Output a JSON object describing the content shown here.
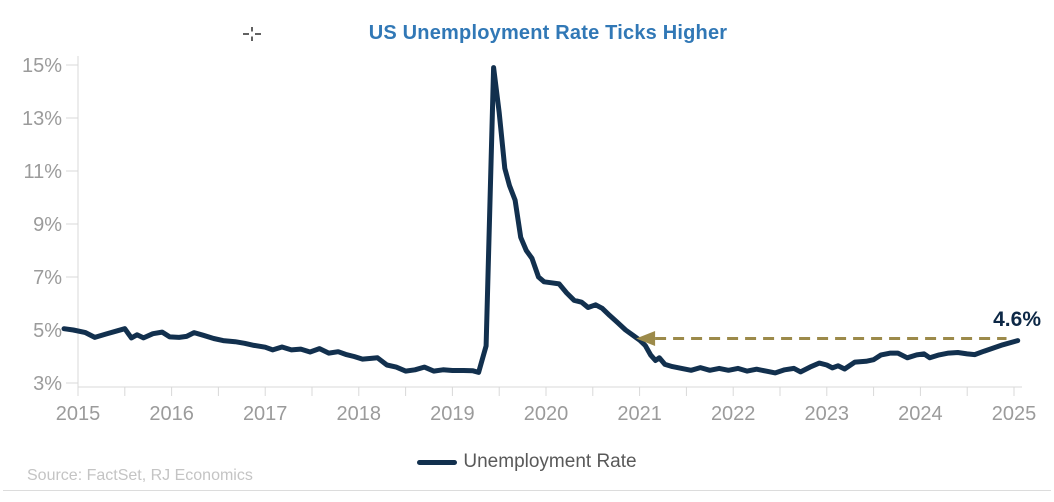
{
  "footer": {
    "source": "Source: FactSet, RJ Economics"
  },
  "chart_data": {
    "type": "line",
    "title": "US Unemployment Rate Ticks Higher",
    "xlabel": "",
    "ylabel": "",
    "legend_label": "Unemployment Rate",
    "legend_position": "bottom-center",
    "grid": false,
    "xlim": [
      2014.85,
      2025.05
    ],
    "ylim": [
      3,
      15
    ],
    "y_axis": {
      "ticks": [
        {
          "value": 3,
          "label": "3%"
        },
        {
          "value": 5,
          "label": "5%"
        },
        {
          "value": 7,
          "label": "7%"
        },
        {
          "value": 9,
          "label": "9%"
        },
        {
          "value": 11,
          "label": "11%"
        },
        {
          "value": 13,
          "label": "13%"
        },
        {
          "value": 15,
          "label": "15%"
        }
      ]
    },
    "x_axis": {
      "ticks": [
        {
          "value": 2015,
          "label": "2015"
        },
        {
          "value": 2016,
          "label": "2016"
        },
        {
          "value": 2017,
          "label": "2017"
        },
        {
          "value": 2018,
          "label": "2018"
        },
        {
          "value": 2019,
          "label": "2019"
        },
        {
          "value": 2020,
          "label": "2020"
        },
        {
          "value": 2021,
          "label": "2021"
        },
        {
          "value": 2022,
          "label": "2022"
        },
        {
          "value": 2023,
          "label": "2023"
        },
        {
          "value": 2024,
          "label": "2024"
        },
        {
          "value": 2025,
          "label": "2025"
        }
      ],
      "minor_tick_step": 0.5
    },
    "annotation": {
      "label": "4.6%",
      "value": 4.6,
      "arrow_y": 4.68,
      "arrow_from_x": 2024.92,
      "arrow_to_x": 2021.08,
      "color": "#9C8A4A"
    },
    "colors": {
      "line": "#12304E",
      "title": "#3178B6",
      "annotation_text": "#0D2846",
      "arrow": "#9C8A4A",
      "axis": "#D8D8D8",
      "tick_label": "#9B9B9B",
      "legend_text": "#595959",
      "source_text": "#C4C4C4"
    },
    "series": [
      {
        "name": "Unemployment Rate",
        "points": [
          [
            2014.85,
            5.05
          ],
          [
            2014.95,
            5.0
          ],
          [
            2015.08,
            4.9
          ],
          [
            2015.18,
            4.72
          ],
          [
            2015.3,
            4.85
          ],
          [
            2015.42,
            4.97
          ],
          [
            2015.5,
            5.05
          ],
          [
            2015.57,
            4.7
          ],
          [
            2015.63,
            4.82
          ],
          [
            2015.7,
            4.7
          ],
          [
            2015.8,
            4.86
          ],
          [
            2015.9,
            4.92
          ],
          [
            2015.98,
            4.74
          ],
          [
            2016.08,
            4.72
          ],
          [
            2016.16,
            4.76
          ],
          [
            2016.24,
            4.9
          ],
          [
            2016.34,
            4.8
          ],
          [
            2016.45,
            4.68
          ],
          [
            2016.55,
            4.6
          ],
          [
            2016.68,
            4.56
          ],
          [
            2016.78,
            4.5
          ],
          [
            2016.88,
            4.42
          ],
          [
            2017.0,
            4.35
          ],
          [
            2017.08,
            4.25
          ],
          [
            2017.18,
            4.36
          ],
          [
            2017.28,
            4.25
          ],
          [
            2017.38,
            4.28
          ],
          [
            2017.48,
            4.17
          ],
          [
            2017.58,
            4.3
          ],
          [
            2017.68,
            4.13
          ],
          [
            2017.78,
            4.18
          ],
          [
            2017.86,
            4.08
          ],
          [
            2017.95,
            4.0
          ],
          [
            2018.04,
            3.9
          ],
          [
            2018.13,
            3.93
          ],
          [
            2018.2,
            3.95
          ],
          [
            2018.3,
            3.68
          ],
          [
            2018.4,
            3.6
          ],
          [
            2018.5,
            3.45
          ],
          [
            2018.6,
            3.5
          ],
          [
            2018.7,
            3.6
          ],
          [
            2018.8,
            3.45
          ],
          [
            2018.9,
            3.5
          ],
          [
            2019.0,
            3.47
          ],
          [
            2019.12,
            3.47
          ],
          [
            2019.22,
            3.46
          ],
          [
            2019.28,
            3.4
          ],
          [
            2019.36,
            4.4
          ],
          [
            2019.44,
            14.9
          ],
          [
            2019.5,
            13.2
          ],
          [
            2019.56,
            11.1
          ],
          [
            2019.61,
            10.45
          ],
          [
            2019.67,
            9.9
          ],
          [
            2019.73,
            8.5
          ],
          [
            2019.79,
            8.0
          ],
          [
            2019.85,
            7.7
          ],
          [
            2019.92,
            7.0
          ],
          [
            2019.98,
            6.82
          ],
          [
            2020.06,
            6.78
          ],
          [
            2020.14,
            6.74
          ],
          [
            2020.22,
            6.4
          ],
          [
            2020.3,
            6.12
          ],
          [
            2020.38,
            6.05
          ],
          [
            2020.45,
            5.85
          ],
          [
            2020.53,
            5.95
          ],
          [
            2020.6,
            5.82
          ],
          [
            2020.68,
            5.55
          ],
          [
            2020.76,
            5.3
          ],
          [
            2020.85,
            5.0
          ],
          [
            2020.93,
            4.8
          ],
          [
            2021.0,
            4.62
          ],
          [
            2021.06,
            4.42
          ],
          [
            2021.12,
            4.05
          ],
          [
            2021.17,
            3.85
          ],
          [
            2021.21,
            3.95
          ],
          [
            2021.27,
            3.7
          ],
          [
            2021.35,
            3.62
          ],
          [
            2021.45,
            3.55
          ],
          [
            2021.55,
            3.48
          ],
          [
            2021.65,
            3.58
          ],
          [
            2021.75,
            3.48
          ],
          [
            2021.85,
            3.55
          ],
          [
            2021.95,
            3.48
          ],
          [
            2022.05,
            3.55
          ],
          [
            2022.15,
            3.45
          ],
          [
            2022.25,
            3.52
          ],
          [
            2022.35,
            3.45
          ],
          [
            2022.45,
            3.38
          ],
          [
            2022.55,
            3.5
          ],
          [
            2022.65,
            3.55
          ],
          [
            2022.72,
            3.42
          ],
          [
            2022.82,
            3.6
          ],
          [
            2022.92,
            3.75
          ],
          [
            2023.0,
            3.68
          ],
          [
            2023.06,
            3.57
          ],
          [
            2023.12,
            3.65
          ],
          [
            2023.19,
            3.53
          ],
          [
            2023.3,
            3.79
          ],
          [
            2023.42,
            3.82
          ],
          [
            2023.5,
            3.88
          ],
          [
            2023.58,
            4.06
          ],
          [
            2023.68,
            4.13
          ],
          [
            2023.76,
            4.13
          ],
          [
            2023.86,
            3.95
          ],
          [
            2023.96,
            4.06
          ],
          [
            2024.04,
            4.1
          ],
          [
            2024.1,
            3.95
          ],
          [
            2024.2,
            4.06
          ],
          [
            2024.3,
            4.13
          ],
          [
            2024.4,
            4.15
          ],
          [
            2024.5,
            4.1
          ],
          [
            2024.58,
            4.07
          ],
          [
            2024.68,
            4.2
          ],
          [
            2024.78,
            4.32
          ],
          [
            2024.88,
            4.44
          ],
          [
            2025.04,
            4.6
          ]
        ]
      }
    ]
  }
}
